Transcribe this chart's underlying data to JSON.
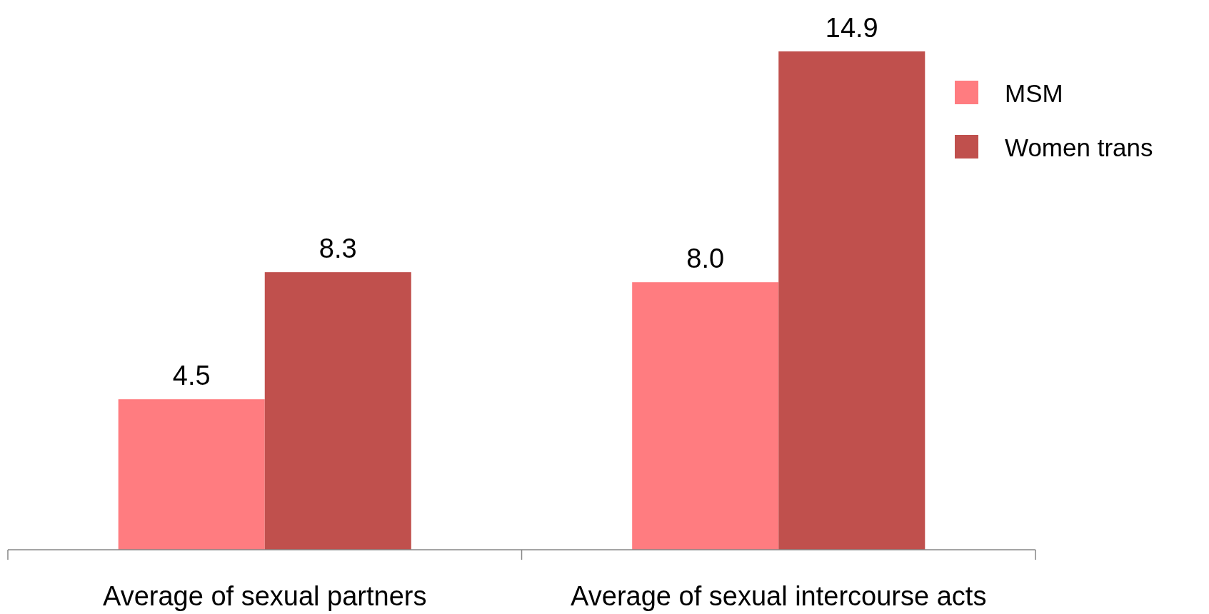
{
  "chart_data": {
    "type": "bar",
    "categories": [
      "Average of sexual partners",
      "Average of sexual intercourse acts"
    ],
    "series": [
      {
        "name": "MSM",
        "color": "#ff7c80",
        "values": [
          4.5,
          8.0
        ],
        "value_labels": [
          "4.5",
          "8.0"
        ]
      },
      {
        "name": "Women trans",
        "color": "#c0504d",
        "values": [
          8.3,
          14.9
        ],
        "value_labels": [
          "8.3",
          "14.9"
        ]
      }
    ],
    "legend": "right"
  }
}
